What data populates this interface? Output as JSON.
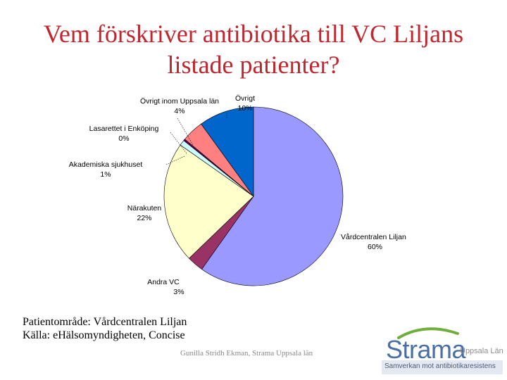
{
  "title": {
    "line1": "Vem förskriver antibiotika till VC Liljans",
    "line2": "listade patienter?"
  },
  "chart_data": {
    "type": "pie",
    "title": "Vem förskriver antibiotika till VC Liljans listade patienter?",
    "slices": [
      {
        "label": "Vårdcentralen Liljan",
        "value_label": "60%",
        "value": 60,
        "color": "#9999ff"
      },
      {
        "label": "Andra VC",
        "value_label": "3%",
        "value": 3,
        "color": "#993366"
      },
      {
        "label": "Närakuten",
        "value_label": "22%",
        "value": 22,
        "color": "#ffffcc"
      },
      {
        "label": "Akademiska sjukhuset",
        "value_label": "1%",
        "value": 1,
        "color": "#ccffff"
      },
      {
        "label": "Lasarettet i Enköping",
        "value_label": "0%",
        "value": 0.3,
        "color": "#660066"
      },
      {
        "label": "Övrigt inom Uppsala län",
        "value_label": "4%",
        "value": 4,
        "color": "#ff8080"
      },
      {
        "label": "Övrigt",
        "value_label": "10%",
        "value": 10,
        "color": "#0066cc"
      }
    ]
  },
  "footer": {
    "line1": "Patientområde: Vårdcentralen Liljan",
    "line2": "Källa: eHälsomyndigheten, Concise",
    "author": "Gunilla Stridh Ekman, Strama Uppsala län"
  },
  "logo": {
    "name": "Strama",
    "region": "Uppsala Län",
    "tagline": "Samverkan mot antibiotikaresistens",
    "colors": {
      "brand": "#4a6fa5",
      "arc": "#6fae3c"
    }
  }
}
